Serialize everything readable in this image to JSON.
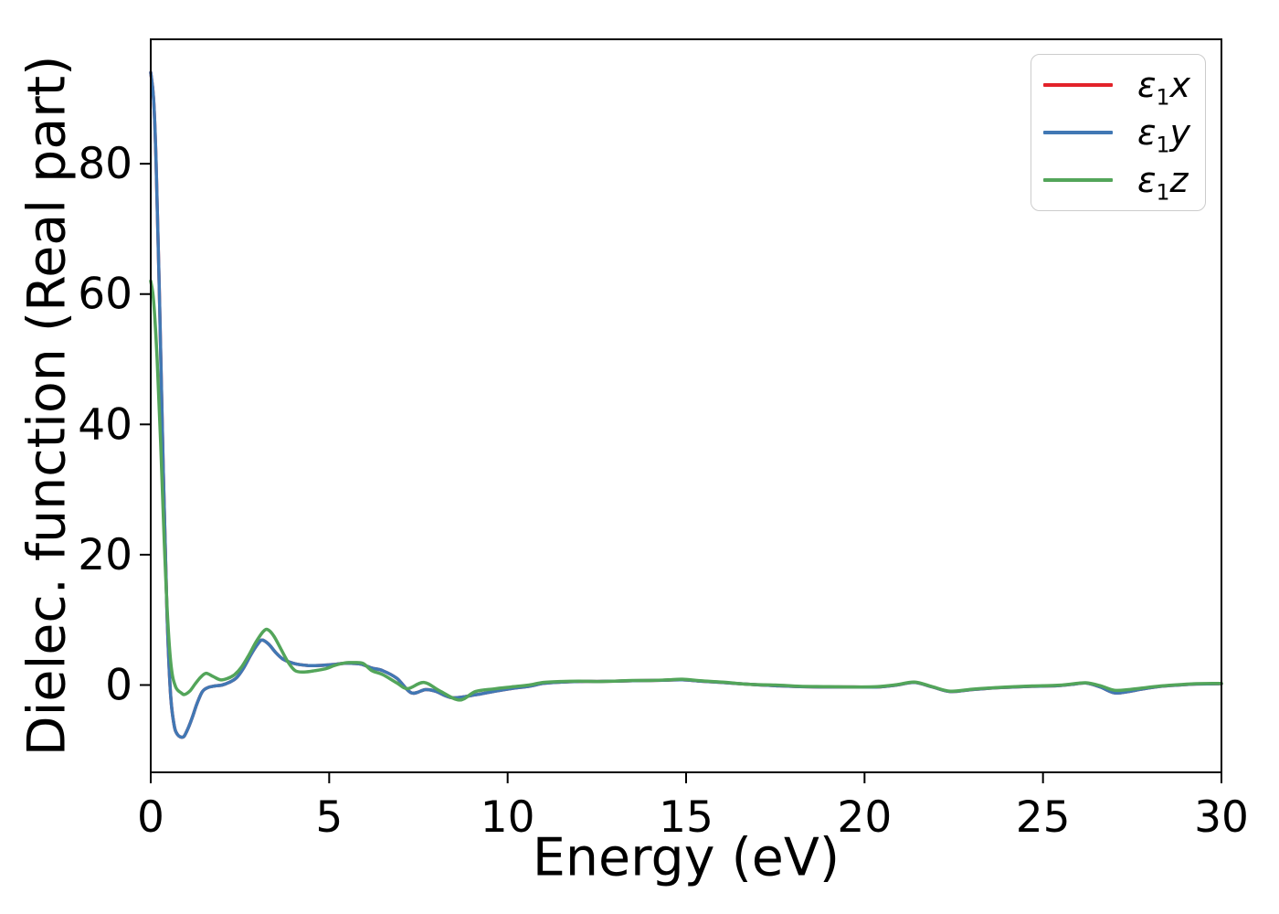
{
  "figure": {
    "background": "#ffffff",
    "axis_color": "#000000"
  },
  "chart_data": {
    "type": "line",
    "title": "",
    "xlabel": "Energy (eV)",
    "ylabel": "Dielec. function (Real part)",
    "xlim": [
      0,
      30
    ],
    "ylim": [
      -13.4,
      99.1
    ],
    "grid": false,
    "legend_position": "upper right",
    "legend_border_color": "#cccccc",
    "xticks": {
      "values": [
        0,
        5,
        10,
        15,
        20,
        25,
        30
      ],
      "labels": [
        "0",
        "5",
        "10",
        "15",
        "20",
        "25",
        "30"
      ]
    },
    "yticks": {
      "values": [
        0,
        20,
        40,
        60,
        80
      ],
      "labels": [
        "0",
        "20",
        "40",
        "60",
        "80"
      ]
    },
    "series": [
      {
        "name": "epsilon1x",
        "label": "ε1x",
        "label_parts": {
          "symbol": "ε",
          "subscript": "1",
          "component": "x"
        },
        "color": "#e2232a",
        "linewidth": 3.5,
        "x": [
          0,
          0.08,
          0.15,
          0.25,
          0.35,
          0.45,
          0.55,
          0.65,
          0.75,
          0.9,
          1.0,
          1.15,
          1.3,
          1.45,
          1.6,
          1.8,
          2.0,
          2.2,
          2.4,
          2.6,
          2.8,
          3.0,
          3.12,
          3.3,
          3.5,
          3.7,
          3.9,
          4.1,
          4.4,
          4.7,
          5.0,
          5.2,
          5.45,
          5.7,
          5.9,
          6.2,
          6.5,
          6.9,
          7.3,
          7.7,
          8.0,
          8.45,
          9.1,
          9.6,
          10.1,
          10.6,
          11.0,
          11.5,
          12.0,
          12.5,
          13.0,
          13.5,
          14.0,
          14.5,
          14.9,
          15.4,
          16.0,
          16.8,
          17.5,
          18.2,
          19.0,
          19.7,
          20.35,
          20.9,
          21.4,
          21.9,
          22.4,
          23.0,
          23.5,
          24.0,
          24.7,
          25.4,
          25.8,
          26.2,
          26.6,
          27.0,
          27.4,
          27.8,
          28.3,
          28.8,
          29.3,
          30
        ],
        "y": [
          94,
          90,
          80,
          58,
          33,
          12,
          -1,
          -6,
          -7.6,
          -8,
          -7.2,
          -5.2,
          -2.8,
          -1.0,
          -0.4,
          -0.15,
          0.0,
          0.4,
          1.1,
          2.6,
          4.6,
          6.3,
          6.9,
          6.3,
          5.0,
          4.0,
          3.5,
          3.2,
          3.0,
          3.0,
          3.1,
          3.2,
          3.35,
          3.3,
          3.2,
          2.6,
          2.2,
          1.0,
          -1.2,
          -0.7,
          -1.0,
          -1.95,
          -1.5,
          -1.0,
          -0.55,
          -0.2,
          0.25,
          0.45,
          0.55,
          0.55,
          0.6,
          0.65,
          0.7,
          0.75,
          0.8,
          0.6,
          0.4,
          0.1,
          -0.1,
          -0.25,
          -0.3,
          -0.3,
          -0.3,
          0.0,
          0.4,
          -0.3,
          -1.0,
          -0.7,
          -0.5,
          -0.35,
          -0.2,
          -0.1,
          0.1,
          0.3,
          -0.3,
          -1.2,
          -1.0,
          -0.6,
          -0.2,
          0.0,
          0.15,
          0.2
        ]
      },
      {
        "name": "epsilon1y",
        "label": "ε1y",
        "label_parts": {
          "symbol": "ε",
          "subscript": "1",
          "component": "y"
        },
        "color": "#4178b4",
        "linewidth": 3.5,
        "x": [
          0,
          0.08,
          0.15,
          0.25,
          0.35,
          0.45,
          0.55,
          0.65,
          0.75,
          0.9,
          1.0,
          1.15,
          1.3,
          1.45,
          1.6,
          1.8,
          2.0,
          2.2,
          2.4,
          2.6,
          2.8,
          3.0,
          3.12,
          3.3,
          3.5,
          3.7,
          3.9,
          4.1,
          4.4,
          4.7,
          5.0,
          5.2,
          5.45,
          5.7,
          5.9,
          6.2,
          6.5,
          6.9,
          7.3,
          7.7,
          8.0,
          8.45,
          9.1,
          9.6,
          10.1,
          10.6,
          11.0,
          11.5,
          12.0,
          12.5,
          13.0,
          13.5,
          14.0,
          14.5,
          14.9,
          15.4,
          16.0,
          16.8,
          17.5,
          18.2,
          19.0,
          19.7,
          20.35,
          20.9,
          21.4,
          21.9,
          22.4,
          23.0,
          23.5,
          24.0,
          24.7,
          25.4,
          25.8,
          26.2,
          26.6,
          27.0,
          27.4,
          27.8,
          28.3,
          28.8,
          29.3,
          30
        ],
        "y": [
          94,
          90,
          80,
          58,
          33,
          12,
          -1,
          -6,
          -7.6,
          -8,
          -7.2,
          -5.2,
          -2.8,
          -1.0,
          -0.4,
          -0.15,
          0.0,
          0.4,
          1.1,
          2.6,
          4.6,
          6.3,
          6.9,
          6.3,
          5.0,
          4.0,
          3.5,
          3.2,
          3.0,
          3.0,
          3.1,
          3.2,
          3.35,
          3.3,
          3.2,
          2.6,
          2.2,
          1.0,
          -1.2,
          -0.7,
          -1.0,
          -1.95,
          -1.5,
          -1.0,
          -0.55,
          -0.2,
          0.25,
          0.45,
          0.55,
          0.55,
          0.6,
          0.65,
          0.7,
          0.75,
          0.8,
          0.6,
          0.4,
          0.1,
          -0.1,
          -0.25,
          -0.3,
          -0.3,
          -0.3,
          0.0,
          0.4,
          -0.3,
          -1.0,
          -0.7,
          -0.5,
          -0.35,
          -0.2,
          -0.1,
          0.1,
          0.3,
          -0.3,
          -1.2,
          -1.0,
          -0.6,
          -0.2,
          0.0,
          0.15,
          0.2
        ]
      },
      {
        "name": "epsilon1z",
        "label": "ε1z",
        "label_parts": {
          "symbol": "ε",
          "subscript": "1",
          "component": "z"
        },
        "color": "#53a55a",
        "linewidth": 3.5,
        "x": [
          0,
          0.08,
          0.18,
          0.28,
          0.38,
          0.48,
          0.58,
          0.7,
          0.85,
          0.95,
          1.1,
          1.25,
          1.4,
          1.55,
          1.75,
          1.95,
          2.15,
          2.35,
          2.55,
          2.75,
          2.95,
          3.15,
          3.28,
          3.45,
          3.65,
          3.85,
          4.05,
          4.3,
          4.6,
          4.9,
          5.15,
          5.45,
          5.7,
          5.95,
          6.2,
          6.5,
          6.9,
          7.2,
          7.65,
          8.1,
          8.65,
          9.1,
          9.6,
          10.1,
          10.6,
          11.0,
          11.5,
          12.0,
          12.5,
          13.0,
          13.5,
          14.0,
          14.5,
          14.9,
          15.4,
          16.0,
          16.8,
          17.5,
          18.2,
          19.0,
          19.7,
          20.35,
          20.9,
          21.4,
          21.9,
          22.4,
          23.0,
          23.5,
          24.0,
          24.7,
          25.4,
          25.8,
          26.2,
          26.6,
          27.0,
          27.4,
          27.8,
          28.3,
          28.8,
          29.3,
          30
        ],
        "y": [
          62,
          59,
          50,
          37,
          22,
          9.5,
          2.5,
          -0.3,
          -1.2,
          -1.45,
          -0.9,
          0.2,
          1.2,
          1.8,
          1.3,
          0.8,
          1.0,
          1.6,
          2.8,
          4.6,
          6.6,
          8.2,
          8.5,
          7.5,
          5.5,
          3.5,
          2.2,
          2.0,
          2.2,
          2.5,
          3.0,
          3.4,
          3.45,
          3.3,
          2.2,
          1.6,
          0.3,
          -0.55,
          0.4,
          -0.9,
          -2.3,
          -1.0,
          -0.6,
          -0.3,
          0.0,
          0.4,
          0.55,
          0.6,
          0.55,
          0.6,
          0.7,
          0.7,
          0.8,
          0.9,
          0.65,
          0.45,
          0.1,
          0.0,
          -0.2,
          -0.25,
          -0.3,
          -0.25,
          0.05,
          0.45,
          -0.25,
          -0.95,
          -0.65,
          -0.45,
          -0.3,
          -0.15,
          -0.05,
          0.15,
          0.35,
          -0.1,
          -0.8,
          -0.7,
          -0.45,
          -0.15,
          0.05,
          0.2,
          0.25
        ]
      }
    ]
  }
}
